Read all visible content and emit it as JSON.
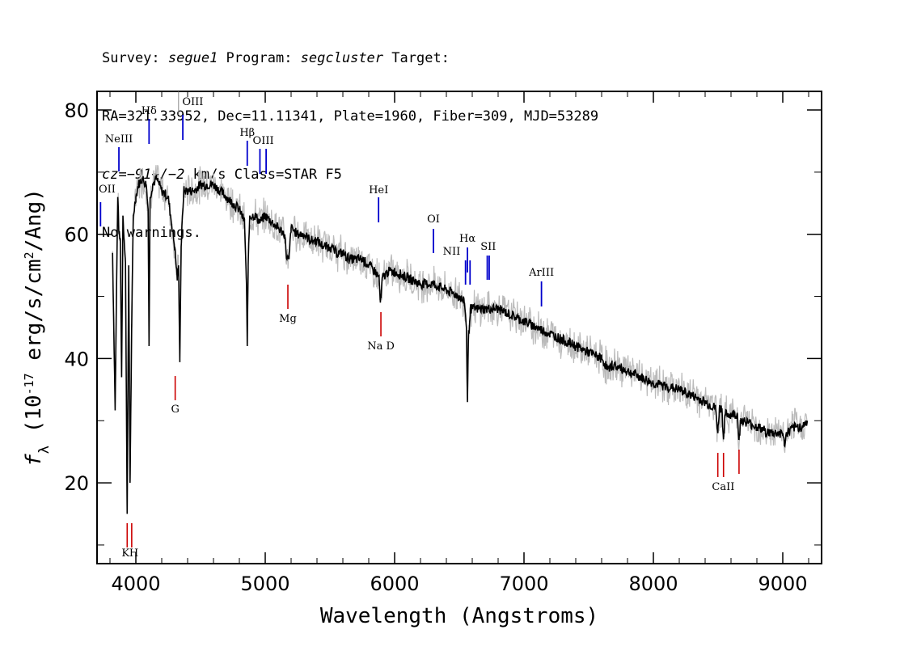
{
  "header": {
    "line1": {
      "survey_label": "Survey: ",
      "survey": "segue1",
      "program_label": " Program: ",
      "program": "segcluster",
      "target_label": " Target:"
    },
    "line2": "RA=321.33952, Dec=11.11341, Plate=1960, Fiber=309, MJD=53289",
    "line3": {
      "cz": "cz=−91+/−2",
      "rest": " km/s Class=STAR F5"
    },
    "line4": "No warnings."
  },
  "chart_data": {
    "type": "line",
    "xlabel": "Wavelength (Angstroms)",
    "ylabel": "f_λ (10^-17 erg/s/cm^2/Ang)",
    "xlim": [
      3700,
      9300
    ],
    "ylim": [
      7,
      83
    ],
    "xticks": [
      4000,
      5000,
      6000,
      7000,
      8000,
      9000
    ],
    "yticks": [
      20,
      40,
      60,
      80
    ],
    "grid": false,
    "colors": {
      "flux": "#000000",
      "error": "#bbbbbb",
      "emission": "#0000cc",
      "absorption": "#cc0000"
    },
    "series": [
      {
        "x": [
          3820,
          3840,
          3850,
          3860,
          3870,
          3880,
          3890,
          3900,
          3910,
          3920,
          3933,
          3945,
          3955,
          3968,
          3980,
          4000,
          4020,
          4050,
          4080,
          4095,
          4102,
          4110,
          4130,
          4160,
          4200,
          4250,
          4300,
          4320,
          4330,
          4340,
          4350,
          4370,
          4400,
          4450,
          4500,
          4550,
          4600,
          4650,
          4700,
          4750,
          4800,
          4840,
          4855,
          4861,
          4868,
          4880,
          4920,
          4960,
          5000,
          5050,
          5100,
          5150,
          5167,
          5175,
          5183,
          5200,
          5250,
          5300,
          5350,
          5400,
          5450,
          5500,
          5550,
          5600,
          5650,
          5700,
          5750,
          5800,
          5850,
          5880,
          5890,
          5896,
          5905,
          5950,
          6000,
          6100,
          6200,
          6300,
          6400,
          6500,
          6540,
          6555,
          6563,
          6570,
          6585,
          6650,
          6800,
          7000,
          7200,
          7400,
          7600,
          7660,
          7680,
          7800,
          8000,
          8200,
          8400,
          8480,
          8498,
          8510,
          8530,
          8542,
          8555,
          8600,
          8650,
          8662,
          8675,
          8700,
          8800,
          8900,
          9000,
          9012,
          9030,
          9100,
          9150,
          9190
        ],
        "y": [
          57,
          32,
          50,
          66,
          60,
          59,
          37,
          63,
          59,
          55,
          15,
          55,
          20,
          45,
          63,
          66,
          68,
          69,
          68,
          64,
          42,
          66,
          68,
          69,
          67,
          66,
          58,
          53,
          55,
          40,
          58,
          67,
          67,
          67,
          68,
          68,
          68,
          67,
          66,
          65,
          64,
          62,
          52,
          42,
          55,
          63,
          63,
          62,
          63,
          62,
          61,
          60,
          56,
          56,
          56,
          61,
          60,
          60,
          59,
          59,
          58,
          58,
          57,
          57,
          56,
          56,
          56,
          55,
          54,
          53,
          49,
          50,
          53,
          54,
          54,
          53,
          52,
          52,
          51,
          50,
          49,
          45,
          33,
          43,
          48,
          48,
          48,
          46,
          44,
          42,
          40,
          38,
          39,
          38,
          36,
          35,
          33,
          32,
          28,
          32,
          32,
          27,
          31,
          31,
          31,
          27,
          30,
          30,
          29,
          28,
          28,
          26,
          28,
          29,
          29,
          30
        ]
      }
    ],
    "lines": [
      {
        "label": "OII",
        "x": 3727,
        "kind": "emission"
      },
      {
        "label": "NeIII",
        "x": 3869,
        "kind": "emission"
      },
      {
        "label": "Hδ",
        "x": 4102,
        "kind": "emission"
      },
      {
        "label": "OIII",
        "x": 4363,
        "kind": "emission"
      },
      {
        "label": "Hβ",
        "x": 4861,
        "kind": "emission"
      },
      {
        "label": "OIII",
        "x": 4959,
        "kind": "emission"
      },
      {
        "label": "OIII",
        "x": 5007,
        "kind": "emission"
      },
      {
        "label": "HeI",
        "x": 5876,
        "kind": "emission"
      },
      {
        "label": "OI",
        "x": 6300,
        "kind": "emission"
      },
      {
        "label": "NII",
        "x": 6548,
        "kind": "emission"
      },
      {
        "label": "Hα",
        "x": 6563,
        "kind": "emission"
      },
      {
        "label": "NII",
        "x": 6583,
        "kind": "emission"
      },
      {
        "label": "SII",
        "x": 6716,
        "kind": "emission"
      },
      {
        "label": "SII",
        "x": 6731,
        "kind": "emission"
      },
      {
        "label": "ArIII",
        "x": 7135,
        "kind": "emission"
      },
      {
        "label": "K",
        "x": 3933,
        "kind": "absorption"
      },
      {
        "label": "H",
        "x": 3968,
        "kind": "absorption"
      },
      {
        "label": "G",
        "x": 4304,
        "kind": "absorption"
      },
      {
        "label": "Mg",
        "x": 5175,
        "kind": "absorption"
      },
      {
        "label": "Na D",
        "x": 5894,
        "kind": "absorption"
      },
      {
        "label": "CaII",
        "x": 8498,
        "kind": "absorption"
      },
      {
        "label": "CaII",
        "x": 8542,
        "kind": "absorption"
      },
      {
        "label": "CaII",
        "x": 8662,
        "kind": "absorption"
      }
    ]
  }
}
